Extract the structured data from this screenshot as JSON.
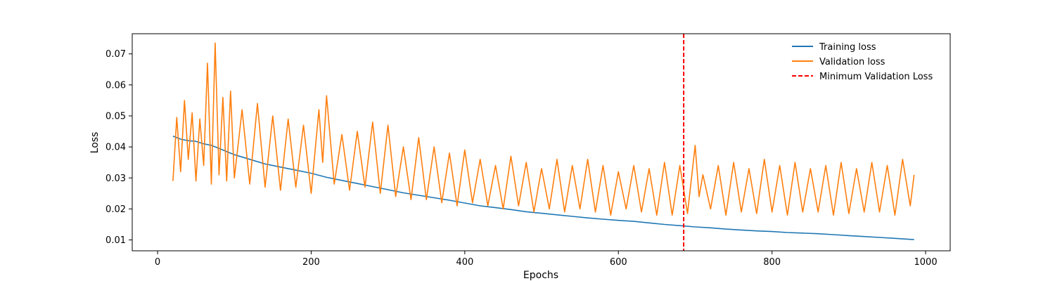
{
  "chart_data": {
    "type": "line",
    "title": "",
    "xlabel": "Epochs",
    "ylabel": "Loss",
    "xlim": [
      -33,
      1032
    ],
    "ylim": [
      0.0065,
      0.0765
    ],
    "xticks": [
      0,
      200,
      400,
      600,
      800,
      1000
    ],
    "xtick_labels": [
      "0",
      "200",
      "400",
      "600",
      "800",
      "1000"
    ],
    "yticks": [
      0.01,
      0.02,
      0.03,
      0.04,
      0.05,
      0.06,
      0.07
    ],
    "ytick_labels": [
      "0.01",
      "0.02",
      "0.03",
      "0.04",
      "0.05",
      "0.06",
      "0.07"
    ],
    "grid": false,
    "legend": {
      "position": "top-right"
    },
    "series": [
      {
        "name": "Training loss",
        "color": "#1f77b4",
        "style": "solid",
        "x": [
          20,
          30,
          40,
          50,
          60,
          70,
          80,
          90,
          100,
          120,
          140,
          160,
          180,
          200,
          220,
          240,
          260,
          280,
          300,
          320,
          340,
          360,
          380,
          400,
          420,
          440,
          460,
          480,
          500,
          520,
          540,
          560,
          580,
          600,
          620,
          640,
          660,
          680,
          700,
          720,
          740,
          760,
          780,
          800,
          820,
          840,
          860,
          880,
          900,
          920,
          940,
          960,
          985
        ],
        "y": [
          0.0435,
          0.0425,
          0.042,
          0.0418,
          0.041,
          0.0405,
          0.0395,
          0.0385,
          0.0375,
          0.036,
          0.0345,
          0.0335,
          0.0325,
          0.0315,
          0.0302,
          0.0292,
          0.0282,
          0.0272,
          0.0262,
          0.0252,
          0.0244,
          0.0236,
          0.0228,
          0.0219,
          0.021,
          0.0204,
          0.0198,
          0.0191,
          0.0186,
          0.0181,
          0.0176,
          0.0171,
          0.0167,
          0.0163,
          0.016,
          0.0155,
          0.015,
          0.0146,
          0.0142,
          0.0139,
          0.0135,
          0.0132,
          0.0129,
          0.0127,
          0.0124,
          0.0122,
          0.012,
          0.0117,
          0.0114,
          0.0111,
          0.0108,
          0.0105,
          0.0101
        ]
      },
      {
        "name": "Validation loss",
        "color": "#ff7f0e",
        "style": "solid",
        "x": [
          20,
          25,
          30,
          35,
          40,
          45,
          50,
          55,
          60,
          65,
          70,
          75,
          80,
          85,
          90,
          95,
          100,
          110,
          120,
          130,
          140,
          150,
          160,
          170,
          180,
          190,
          200,
          210,
          215,
          220,
          230,
          240,
          250,
          260,
          270,
          280,
          290,
          300,
          310,
          320,
          330,
          340,
          350,
          360,
          370,
          380,
          390,
          400,
          410,
          420,
          430,
          440,
          450,
          460,
          470,
          480,
          490,
          500,
          510,
          520,
          530,
          540,
          550,
          560,
          570,
          580,
          590,
          600,
          610,
          620,
          630,
          640,
          650,
          660,
          670,
          680,
          690,
          700,
          705,
          710,
          720,
          730,
          740,
          750,
          760,
          770,
          780,
          790,
          800,
          810,
          820,
          830,
          840,
          850,
          860,
          870,
          880,
          890,
          900,
          910,
          920,
          930,
          940,
          950,
          960,
          970,
          980,
          985
        ],
        "y": [
          0.029,
          0.0495,
          0.032,
          0.055,
          0.036,
          0.051,
          0.029,
          0.049,
          0.034,
          0.067,
          0.028,
          0.0735,
          0.031,
          0.056,
          0.029,
          0.058,
          0.03,
          0.052,
          0.028,
          0.054,
          0.027,
          0.05,
          0.026,
          0.049,
          0.027,
          0.047,
          0.025,
          0.052,
          0.035,
          0.0565,
          0.028,
          0.044,
          0.026,
          0.045,
          0.027,
          0.048,
          0.025,
          0.047,
          0.024,
          0.04,
          0.023,
          0.043,
          0.023,
          0.04,
          0.022,
          0.038,
          0.021,
          0.039,
          0.022,
          0.036,
          0.021,
          0.034,
          0.02,
          0.037,
          0.021,
          0.035,
          0.019,
          0.033,
          0.02,
          0.036,
          0.019,
          0.034,
          0.02,
          0.036,
          0.019,
          0.034,
          0.018,
          0.032,
          0.02,
          0.034,
          0.019,
          0.033,
          0.018,
          0.035,
          0.018,
          0.034,
          0.0185,
          0.0405,
          0.024,
          0.031,
          0.02,
          0.034,
          0.018,
          0.035,
          0.019,
          0.033,
          0.0185,
          0.036,
          0.019,
          0.034,
          0.018,
          0.035,
          0.019,
          0.033,
          0.019,
          0.034,
          0.018,
          0.035,
          0.0185,
          0.033,
          0.019,
          0.035,
          0.019,
          0.034,
          0.018,
          0.036,
          0.021,
          0.031
        ]
      }
    ],
    "vlines": [
      {
        "name": "Minimum Validation Loss",
        "x": 685,
        "color": "#ff0000",
        "style": "dashed"
      }
    ]
  }
}
